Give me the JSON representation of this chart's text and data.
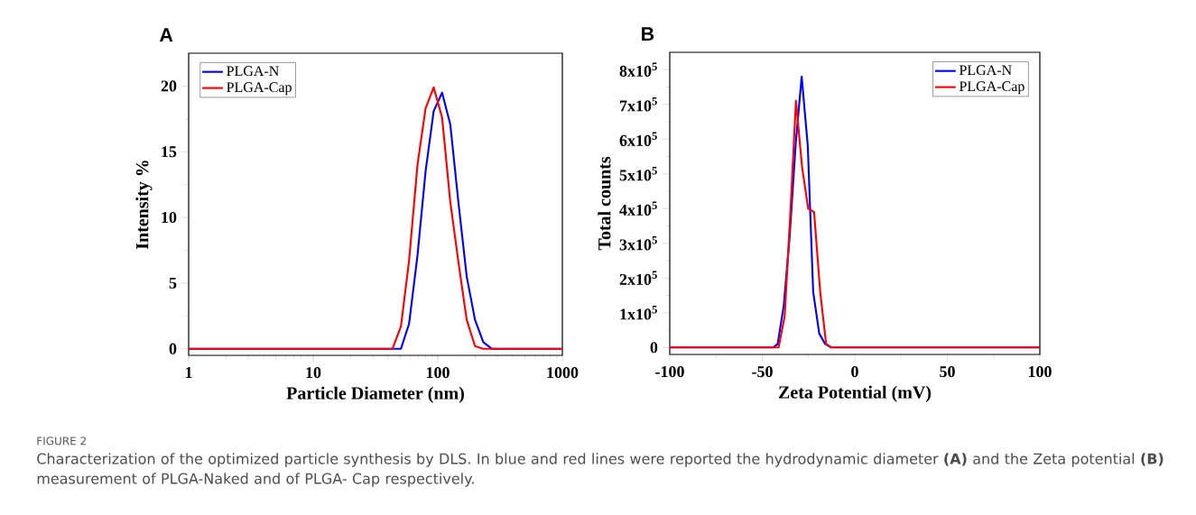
{
  "chart_data": [
    {
      "type": "line",
      "title": "A",
      "xlabel": "Particle Diameter (nm)",
      "ylabel": "Intensity %",
      "log": "x",
      "legend": "top left",
      "xlim": [
        1,
        1000
      ],
      "xticks": [
        1,
        10,
        100,
        {
          "value": 1000,
          "label": "1000"
        }
      ],
      "ylim": [
        -0.5,
        22.5
      ],
      "yticks": [
        0,
        5,
        10,
        15,
        20
      ],
      "series": [
        {
          "name": "PLGA-N",
          "color": "#0000ff",
          "x": [
            1,
            50.6,
            58.8,
            68.7,
            79.8,
            92.7,
            108.3,
            125.9,
            147,
            170.7,
            199,
            232,
            271,
            1000
          ],
          "values": [
            0,
            0,
            1.9,
            7.1,
            13.5,
            18.1,
            19.5,
            17.1,
            11,
            5.5,
            2.2,
            0.5,
            0,
            0
          ]
        },
        {
          "name": "PLGA-Cap",
          "color": "#ff0000",
          "x": [
            1,
            43.3,
            50.6,
            58.8,
            68.7,
            79.8,
            92.7,
            108.3,
            125.9,
            147,
            170.7,
            199,
            232,
            1000
          ],
          "values": [
            0,
            0,
            1.7,
            6.7,
            14,
            18.3,
            19.9,
            17.6,
            11.2,
            6.5,
            2.2,
            0.2,
            0,
            0
          ]
        }
      ],
      "annotations": [
        "FIGURE 2",
        "Characterization of the optimized particle synthesis by DLS. In blue and red lines were reported the hydrodynamic diameter **(A)** and the Zeta potential **(B)** measurement of PLGA-Naked and of PLGA- Cap respectively."
      ]
    },
    {
      "type": "line",
      "title": "B",
      "xlabel": "Zeta Potential (mV)",
      "ylabel": "Total counts",
      "legend": "top right",
      "xlim": [
        -100,
        100
      ],
      "xticks": [
        -100,
        -50,
        0,
        50,
        100
      ],
      "ylim": [
        -20000,
        850000
      ],
      "yticks": [
        0,
        {
          "value": 100000,
          "label": "1x10$^{5}$"
        },
        {
          "value": 200000,
          "label": "2x10$^{5}$"
        },
        {
          "value": 300000,
          "label": "3x10$^{5}$"
        },
        {
          "value": 400000,
          "label": "4x10$^{5}$"
        },
        {
          "value": 500000,
          "label": "5x10$^{5}$"
        },
        {
          "value": 600000,
          "label": "6x10$^{5}$"
        },
        {
          "value": 700000,
          "label": "7x10$^{5}$"
        },
        {
          "value": 800000,
          "label": "8x10$^{5}$"
        }
      ],
      "series": [
        {
          "name": "PLGA-N",
          "color": "#0000ff",
          "x": [
            -100,
            -44.1,
            -41.7,
            -38.4,
            -35.2,
            -31.9,
            -28.7,
            -25.4,
            -22.5,
            -19.2,
            -16,
            -12.7,
            100
          ],
          "values": [
            0,
            0,
            10000,
            120000,
            320000,
            590000,
            780000,
            580000,
            160000,
            40000,
            10000,
            0,
            0
          ]
        },
        {
          "name": "PLGA-Cap",
          "color": "#ff0000",
          "x": [
            -100,
            -41.2,
            -37.9,
            -34.7,
            -31.8,
            -28.5,
            -25.2,
            -22,
            -18.7,
            -15.5,
            -12.5,
            32.4,
            35.3,
            38.3,
            100
          ],
          "values": [
            0,
            0,
            90000,
            400000,
            710000,
            520000,
            400000,
            390000,
            160000,
            10000,
            0,
            0,
            0,
            0,
            0
          ]
        }
      ]
    }
  ]
}
